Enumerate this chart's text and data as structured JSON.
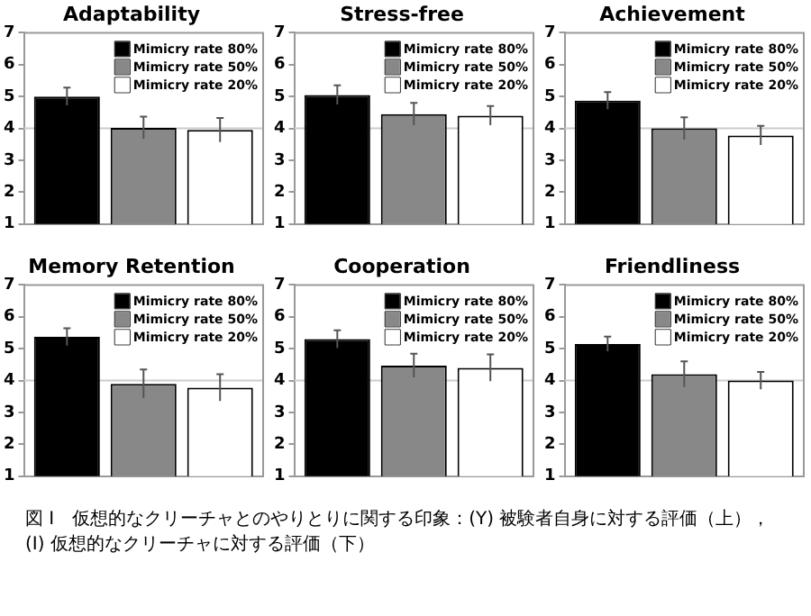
{
  "chart_data": [
    {
      "type": "bar",
      "title": "Adaptability",
      "categories": [
        null
      ],
      "ylim": [
        1,
        7
      ],
      "yticks": [
        1,
        2,
        3,
        4,
        5,
        6,
        7
      ],
      "grid": false,
      "legend": "top right",
      "ref_lines": [
        {
          "axis": "y",
          "value": 4,
          "color": "#cccccc"
        }
      ],
      "series": [
        {
          "name": "Mimicry rate 80%",
          "color": "#000000",
          "values": [
            5.0
          ],
          "errors": [
            0.28
          ]
        },
        {
          "name": "Mimicry rate 50%",
          "color": "#888888",
          "values": [
            4.02
          ],
          "errors": [
            0.35
          ]
        },
        {
          "name": "Mimicry rate 20%",
          "color": "#ffffff",
          "values": [
            3.95
          ],
          "errors": [
            0.38
          ]
        }
      ]
    },
    {
      "type": "bar",
      "title": "Stress-free",
      "categories": [
        null
      ],
      "ylim": [
        1,
        7
      ],
      "yticks": [
        1,
        2,
        3,
        4,
        5,
        6,
        7
      ],
      "grid": false,
      "legend": "top right",
      "ref_lines": [
        {
          "axis": "y",
          "value": 4,
          "color": "#cccccc"
        }
      ],
      "series": [
        {
          "name": "Mimicry rate 80%",
          "color": "#000000",
          "values": [
            5.05
          ],
          "errors": [
            0.3
          ]
        },
        {
          "name": "Mimicry rate 50%",
          "color": "#888888",
          "values": [
            4.45
          ],
          "errors": [
            0.35
          ]
        },
        {
          "name": "Mimicry rate 20%",
          "color": "#ffffff",
          "values": [
            4.4
          ],
          "errors": [
            0.3
          ]
        }
      ]
    },
    {
      "type": "bar",
      "title": "Achievement",
      "categories": [
        null
      ],
      "ylim": [
        1,
        7
      ],
      "yticks": [
        1,
        2,
        3,
        4,
        5,
        6,
        7
      ],
      "grid": false,
      "legend": "top right",
      "ref_lines": [
        {
          "axis": "y",
          "value": 4,
          "color": "#cccccc"
        }
      ],
      "series": [
        {
          "name": "Mimicry rate 80%",
          "color": "#000000",
          "values": [
            4.87
          ],
          "errors": [
            0.27
          ]
        },
        {
          "name": "Mimicry rate 50%",
          "color": "#888888",
          "values": [
            4.0
          ],
          "errors": [
            0.35
          ]
        },
        {
          "name": "Mimicry rate 20%",
          "color": "#ffffff",
          "values": [
            3.78
          ],
          "errors": [
            0.3
          ]
        }
      ]
    },
    {
      "type": "bar",
      "title": "Memory Retention",
      "categories": [
        null
      ],
      "ylim": [
        1,
        7
      ],
      "yticks": [
        1,
        2,
        3,
        4,
        5,
        6,
        7
      ],
      "grid": false,
      "legend": "top right",
      "ref_lines": [
        {
          "axis": "y",
          "value": 4,
          "color": "#cccccc"
        }
      ],
      "series": [
        {
          "name": "Mimicry rate 80%",
          "color": "#000000",
          "values": [
            5.37
          ],
          "errors": [
            0.27
          ]
        },
        {
          "name": "Mimicry rate 50%",
          "color": "#888888",
          "values": [
            3.9
          ],
          "errors": [
            0.45
          ]
        },
        {
          "name": "Mimicry rate 20%",
          "color": "#ffffff",
          "values": [
            3.78
          ],
          "errors": [
            0.42
          ]
        }
      ]
    },
    {
      "type": "bar",
      "title": "Cooperation",
      "categories": [
        null
      ],
      "ylim": [
        1,
        7
      ],
      "yticks": [
        1,
        2,
        3,
        4,
        5,
        6,
        7
      ],
      "grid": false,
      "legend": "top right",
      "ref_lines": [
        {
          "axis": "y",
          "value": 4,
          "color": "#cccccc"
        }
      ],
      "series": [
        {
          "name": "Mimicry rate 80%",
          "color": "#000000",
          "values": [
            5.3
          ],
          "errors": [
            0.28
          ]
        },
        {
          "name": "Mimicry rate 50%",
          "color": "#888888",
          "values": [
            4.47
          ],
          "errors": [
            0.37
          ]
        },
        {
          "name": "Mimicry rate 20%",
          "color": "#ffffff",
          "values": [
            4.4
          ],
          "errors": [
            0.42
          ]
        }
      ]
    },
    {
      "type": "bar",
      "title": "Friendliness",
      "categories": [
        null
      ],
      "ylim": [
        1,
        7
      ],
      "yticks": [
        1,
        2,
        3,
        4,
        5,
        6,
        7
      ],
      "grid": false,
      "legend": "top right",
      "ref_lines": [
        {
          "axis": "y",
          "value": 4,
          "color": "#cccccc"
        }
      ],
      "annotations": [
        "図 I　仮想的なクリーチャとのやりとりに関する印象：(Y) 被験者自身に対する評価（上），",
        "(I) 仮想的なクリーチャに対する評価（下）"
      ],
      "series": [
        {
          "name": "Mimicry rate 80%",
          "color": "#000000",
          "values": [
            5.15
          ],
          "errors": [
            0.23
          ]
        },
        {
          "name": "Mimicry rate 50%",
          "color": "#888888",
          "values": [
            4.2
          ],
          "errors": [
            0.4
          ]
        },
        {
          "name": "Mimicry rate 20%",
          "color": "#ffffff",
          "values": [
            4.0
          ],
          "errors": [
            0.27
          ]
        }
      ]
    }
  ]
}
